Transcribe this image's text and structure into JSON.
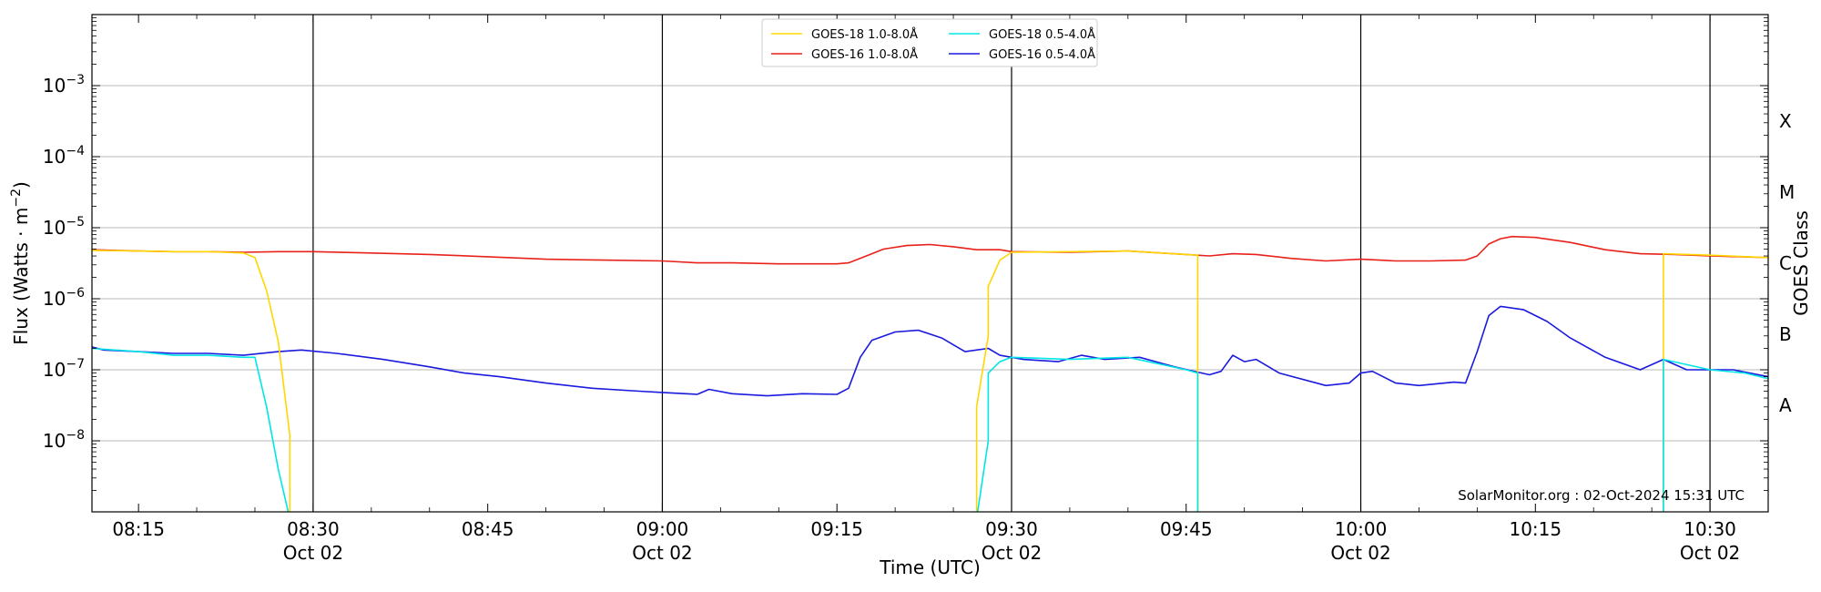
{
  "chart_data": {
    "type": "line",
    "xlabel": "Time (UTC)",
    "ylabel_main": "Flux (Watts · m",
    "ylabel_exp": "−2",
    "ylabel_close": ")",
    "right_label": "GOES Class",
    "y_scale": "log",
    "ylim": [
      1e-09,
      0.01
    ],
    "xlim": [
      "08:11",
      "10:35"
    ],
    "grid": "horizontal",
    "legend_position": "top-center",
    "credit": "SolarMonitor.org : 02-Oct-2024 15:31 UTC",
    "x_ticks": [
      {
        "t": "08:15",
        "label": "08:15",
        "date": ""
      },
      {
        "t": "08:30",
        "label": "08:30",
        "date": "Oct 02"
      },
      {
        "t": "08:45",
        "label": "08:45",
        "date": ""
      },
      {
        "t": "09:00",
        "label": "09:00",
        "date": "Oct 02"
      },
      {
        "t": "09:15",
        "label": "09:15",
        "date": ""
      },
      {
        "t": "09:30",
        "label": "09:30",
        "date": "Oct 02"
      },
      {
        "t": "09:45",
        "label": "09:45",
        "date": ""
      },
      {
        "t": "10:00",
        "label": "10:00",
        "date": "Oct 02"
      },
      {
        "t": "10:15",
        "label": "10:15",
        "date": ""
      },
      {
        "t": "10:30",
        "label": "10:30",
        "date": "Oct 02"
      }
    ],
    "vlines": [
      "08:30",
      "09:00",
      "09:30",
      "10:00",
      "10:30"
    ],
    "y_ticks": [
      {
        "value": 1e-08,
        "base": "10",
        "exp": "−8"
      },
      {
        "value": 1e-07,
        "base": "10",
        "exp": "−7"
      },
      {
        "value": 1e-06,
        "base": "10",
        "exp": "−6"
      },
      {
        "value": 1e-05,
        "base": "10",
        "exp": "−5"
      },
      {
        "value": 0.0001,
        "base": "10",
        "exp": "−4"
      },
      {
        "value": 0.001,
        "base": "10",
        "exp": "−3"
      }
    ],
    "goes_classes": [
      {
        "label": "A",
        "value": 3.16e-08
      },
      {
        "label": "B",
        "value": 3.16e-07
      },
      {
        "label": "C",
        "value": 3.16e-06
      },
      {
        "label": "M",
        "value": 3.16e-05
      },
      {
        "label": "X",
        "value": 0.000316
      }
    ],
    "series": [
      {
        "name": "GOES-18 1.0-8.0Å",
        "color": "#ffd700",
        "points": [
          [
            "08:11",
            4.8e-06
          ],
          [
            "08:15",
            4.7e-06
          ],
          [
            "08:18",
            4.6e-06
          ],
          [
            "08:21",
            4.6e-06
          ],
          [
            "08:24",
            4.4e-06
          ],
          [
            "08:25",
            3.8e-06
          ],
          [
            "08:26",
            1.3e-06
          ],
          [
            "08:27",
            2.5e-07
          ],
          [
            "08:28",
            1.2e-08
          ],
          [
            "08:28",
            8e-10
          ],
          [
            "09:27",
            8e-10
          ],
          [
            "09:27",
            3e-08
          ],
          [
            "09:28",
            3e-07
          ],
          [
            "09:28",
            1.5e-06
          ],
          [
            "09:29",
            3.5e-06
          ],
          [
            "09:30",
            4.5e-06
          ],
          [
            "09:35",
            4.6e-06
          ],
          [
            "09:40",
            4.7e-06
          ],
          [
            "09:45",
            4.2e-06
          ],
          [
            "09:46",
            4.1e-06
          ],
          [
            "09:46",
            4e-06
          ],
          [
            "09:46",
            8e-10
          ],
          [
            "10:26",
            8e-10
          ],
          [
            "10:26",
            4.3e-06
          ],
          [
            "10:30",
            4.1e-06
          ],
          [
            "10:35",
            3.8e-06
          ]
        ]
      },
      {
        "name": "GOES-16 1.0-8.0Å",
        "color": "#e8211a",
        "points": [
          [
            "08:11",
            4.9e-06
          ],
          [
            "08:15",
            4.7e-06
          ],
          [
            "08:18",
            4.6e-06
          ],
          [
            "08:21",
            4.6e-06
          ],
          [
            "08:24",
            4.5e-06
          ],
          [
            "08:27",
            4.6e-06
          ],
          [
            "08:30",
            4.6e-06
          ],
          [
            "08:35",
            4.4e-06
          ],
          [
            "08:40",
            4.2e-06
          ],
          [
            "08:45",
            3.9e-06
          ],
          [
            "08:50",
            3.6e-06
          ],
          [
            "08:55",
            3.5e-06
          ],
          [
            "09:00",
            3.4e-06
          ],
          [
            "09:03",
            3.2e-06
          ],
          [
            "09:06",
            3.2e-06
          ],
          [
            "09:10",
            3.1e-06
          ],
          [
            "09:15",
            3.1e-06
          ],
          [
            "09:16",
            3.2e-06
          ],
          [
            "09:18",
            4.3e-06
          ],
          [
            "09:19",
            5e-06
          ],
          [
            "09:21",
            5.6e-06
          ],
          [
            "09:23",
            5.8e-06
          ],
          [
            "09:25",
            5.4e-06
          ],
          [
            "09:27",
            4.9e-06
          ],
          [
            "09:29",
            4.9e-06
          ],
          [
            "09:30",
            4.6e-06
          ],
          [
            "09:35",
            4.5e-06
          ],
          [
            "09:40",
            4.7e-06
          ],
          [
            "09:45",
            4.2e-06
          ],
          [
            "09:47",
            4e-06
          ],
          [
            "09:49",
            4.3e-06
          ],
          [
            "09:51",
            4.2e-06
          ],
          [
            "09:54",
            3.7e-06
          ],
          [
            "09:57",
            3.4e-06
          ],
          [
            "10:00",
            3.6e-06
          ],
          [
            "10:03",
            3.4e-06
          ],
          [
            "10:06",
            3.4e-06
          ],
          [
            "10:09",
            3.5e-06
          ],
          [
            "10:10",
            4e-06
          ],
          [
            "10:11",
            5.9e-06
          ],
          [
            "10:12",
            7e-06
          ],
          [
            "10:13",
            7.5e-06
          ],
          [
            "10:15",
            7.3e-06
          ],
          [
            "10:18",
            6.2e-06
          ],
          [
            "10:21",
            4.9e-06
          ],
          [
            "10:24",
            4.3e-06
          ],
          [
            "10:27",
            4.2e-06
          ],
          [
            "10:30",
            4e-06
          ],
          [
            "10:35",
            3.8e-06
          ]
        ]
      },
      {
        "name": "GOES-18 0.5-4.0Å",
        "color": "#00e5e5",
        "points": [
          [
            "08:11",
            2e-07
          ],
          [
            "08:15",
            1.8e-07
          ],
          [
            "08:18",
            1.6e-07
          ],
          [
            "08:21",
            1.6e-07
          ],
          [
            "08:24",
            1.5e-07
          ],
          [
            "08:25",
            1.5e-07
          ],
          [
            "08:26",
            3e-08
          ],
          [
            "08:27",
            4e-09
          ],
          [
            "08:28",
            8e-10
          ],
          [
            "09:27",
            8e-10
          ],
          [
            "09:28",
            1e-08
          ],
          [
            "09:28",
            9e-08
          ],
          [
            "09:29",
            1.3e-07
          ],
          [
            "09:30",
            1.5e-07
          ],
          [
            "09:35",
            1.4e-07
          ],
          [
            "09:40",
            1.5e-07
          ],
          [
            "09:45",
            1e-07
          ],
          [
            "09:46",
            9e-08
          ],
          [
            "09:46",
            8e-10
          ],
          [
            "10:26",
            8e-10
          ],
          [
            "10:26",
            1.4e-07
          ],
          [
            "10:30",
            1e-07
          ],
          [
            "10:33",
            9e-08
          ],
          [
            "10:35",
            7.5e-08
          ]
        ]
      },
      {
        "name": "GOES-16 0.5-4.0Å",
        "color": "#1a1adf",
        "points": [
          [
            "08:11",
            2.1e-07
          ],
          [
            "08:12",
            1.9e-07
          ],
          [
            "08:15",
            1.8e-07
          ],
          [
            "08:18",
            1.7e-07
          ],
          [
            "08:21",
            1.7e-07
          ],
          [
            "08:24",
            1.6e-07
          ],
          [
            "08:27",
            1.8e-07
          ],
          [
            "08:29",
            1.9e-07
          ],
          [
            "08:32",
            1.7e-07
          ],
          [
            "08:36",
            1.4e-07
          ],
          [
            "08:40",
            1.1e-07
          ],
          [
            "08:43",
            9e-08
          ],
          [
            "08:46",
            8e-08
          ],
          [
            "08:50",
            6.5e-08
          ],
          [
            "08:54",
            5.5e-08
          ],
          [
            "08:58",
            5e-08
          ],
          [
            "09:00",
            4.8e-08
          ],
          [
            "09:03",
            4.5e-08
          ],
          [
            "09:04",
            5.3e-08
          ],
          [
            "09:06",
            4.6e-08
          ],
          [
            "09:09",
            4.3e-08
          ],
          [
            "09:12",
            4.6e-08
          ],
          [
            "09:15",
            4.5e-08
          ],
          [
            "09:16",
            5.5e-08
          ],
          [
            "09:17",
            1.5e-07
          ],
          [
            "09:18",
            2.6e-07
          ],
          [
            "09:20",
            3.4e-07
          ],
          [
            "09:22",
            3.6e-07
          ],
          [
            "09:24",
            2.8e-07
          ],
          [
            "09:26",
            1.8e-07
          ],
          [
            "09:28",
            2e-07
          ],
          [
            "09:29",
            1.6e-07
          ],
          [
            "09:31",
            1.4e-07
          ],
          [
            "09:34",
            1.3e-07
          ],
          [
            "09:36",
            1.6e-07
          ],
          [
            "09:38",
            1.4e-07
          ],
          [
            "09:41",
            1.5e-07
          ],
          [
            "09:44",
            1.1e-07
          ],
          [
            "09:47",
            8.5e-08
          ],
          [
            "09:48",
            9.5e-08
          ],
          [
            "09:49",
            1.6e-07
          ],
          [
            "09:50",
            1.3e-07
          ],
          [
            "09:51",
            1.4e-07
          ],
          [
            "09:53",
            9e-08
          ],
          [
            "09:57",
            6e-08
          ],
          [
            "09:59",
            6.5e-08
          ],
          [
            "10:00",
            9e-08
          ],
          [
            "10:01",
            9.5e-08
          ],
          [
            "10:03",
            6.5e-08
          ],
          [
            "10:05",
            6e-08
          ],
          [
            "10:08",
            6.7e-08
          ],
          [
            "10:09",
            6.5e-08
          ],
          [
            "10:10",
            1.8e-07
          ],
          [
            "10:11",
            5.8e-07
          ],
          [
            "10:12",
            7.8e-07
          ],
          [
            "10:14",
            7e-07
          ],
          [
            "10:16",
            4.8e-07
          ],
          [
            "10:18",
            2.8e-07
          ],
          [
            "10:21",
            1.5e-07
          ],
          [
            "10:24",
            1e-07
          ],
          [
            "10:26",
            1.4e-07
          ],
          [
            "10:28",
            1e-07
          ],
          [
            "10:30",
            1e-07
          ],
          [
            "10:32",
            1e-07
          ],
          [
            "10:35",
            8e-08
          ]
        ]
      }
    ]
  }
}
